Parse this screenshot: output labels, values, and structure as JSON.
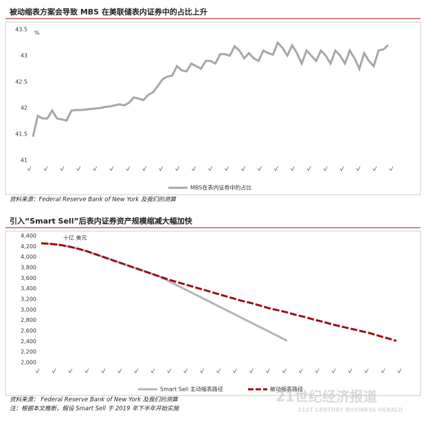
{
  "watermark": "21世纪经济报道",
  "watermark_sub": "21ST CENTURY BUSINESS HERALD",
  "chart_data": [
    {
      "type": "line",
      "title": "被动缩表方案会导致 MBS 在美联储表内证券中的占比上升",
      "unit": "%",
      "source": [
        "资料来源：Federal Reserve Bank of New York 及我们的测算"
      ],
      "ylim": [
        41,
        43.5
      ],
      "yticks": [
        41,
        41.5,
        42,
        42.5,
        43,
        43.5
      ],
      "grid": false,
      "legend": "bottom",
      "series": [
        {
          "name": "MBS在表内证券中的占比",
          "color": "#a6a6a6",
          "dash": false,
          "values": [
            41.45,
            41.85,
            41.8,
            41.8,
            41.95,
            41.8,
            41.78,
            41.76,
            41.95,
            41.96,
            41.96,
            41.97,
            41.98,
            41.99,
            42.0,
            42.02,
            42.03,
            42.05,
            42.07,
            42.05,
            42.1,
            42.2,
            42.18,
            42.15,
            42.25,
            42.3,
            42.42,
            42.55,
            42.6,
            42.62,
            42.8,
            42.72,
            42.7,
            42.85,
            42.8,
            42.75,
            42.9,
            42.9,
            42.85,
            43.03,
            43.03,
            43.0,
            43.18,
            43.1,
            42.95,
            43.05,
            42.95,
            42.9,
            43.1,
            43.05,
            43.02,
            43.25,
            43.15,
            43.0,
            43.2,
            43.05,
            42.85,
            43.1,
            43.0,
            42.9,
            43.1,
            43.0,
            42.85,
            43.1,
            43.0,
            42.85,
            43.1,
            42.95,
            42.75,
            43.05,
            42.9,
            42.8,
            43.1,
            43.12,
            43.2
          ]
        }
      ]
    },
    {
      "type": "line",
      "title": "引入“Smart Sell”后表内证券资产规模缩减大幅加快",
      "unit": "十亿 美元",
      "source": [
        "资料来源： Federal Reserve Bank of New York 及我们的测算",
        "注：根据本文推断，假设 Smart Sell 于 2019 年下半年开始实施"
      ],
      "ylim": [
        2000,
        4400
      ],
      "yticks": [
        {
          "value": 2000,
          "label": "2,000"
        },
        {
          "value": 2200,
          "label": "2,200"
        },
        {
          "value": 2400,
          "label": "2,400"
        },
        {
          "value": 2600,
          "label": "2,600"
        },
        {
          "value": 2800,
          "label": "2,800"
        },
        {
          "value": 3000,
          "label": "3,000"
        },
        {
          "value": 3200,
          "label": "3,200"
        },
        {
          "value": 3400,
          "label": "3,400"
        },
        {
          "value": 3600,
          "label": "3,600"
        },
        {
          "value": 3800,
          "label": "3,800"
        },
        {
          "value": 4000,
          "label": "4,000"
        },
        {
          "value": 4200,
          "label": "4,200"
        },
        {
          "value": 4400,
          "label": "4,400"
        }
      ],
      "grid": false,
      "legend": "bottom",
      "series": [
        {
          "name": "Smart Sell 主动缩表路径",
          "color": "#b3b3b3",
          "dash": false,
          "values": [
            4260,
            4250,
            4230,
            4200,
            4160,
            4110,
            4050,
            3990,
            3930,
            3870,
            3810,
            3750,
            3690,
            3630,
            3543,
            3456,
            3369,
            3282,
            3195,
            3108,
            3021,
            2934,
            2847,
            2760,
            2673,
            2586,
            2499,
            2410
          ]
        },
        {
          "name": "被动缩表路径",
          "color": "#9b0d10",
          "dash": true,
          "values": [
            4260,
            4250,
            4230,
            4200,
            4160,
            4110,
            4050,
            3990,
            3930,
            3870,
            3810,
            3750,
            3690,
            3630,
            3570,
            3520,
            3470,
            3420,
            3370,
            3320,
            3270,
            3220,
            3170,
            3130,
            3080,
            3030,
            2990,
            2950,
            2900,
            2860,
            2810,
            2770,
            2720,
            2680,
            2640,
            2600,
            2560,
            2510,
            2460,
            2410
          ]
        }
      ]
    }
  ]
}
